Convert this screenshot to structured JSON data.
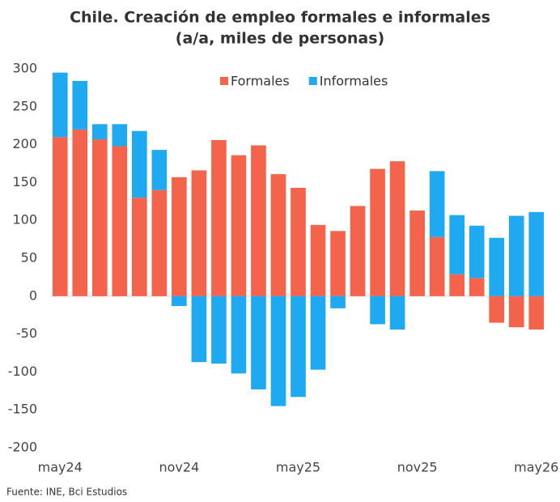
{
  "chart_data": {
    "type": "bar",
    "stacked": true,
    "title": "Chile. Creación de empleo formales e informales",
    "subtitle": "(a/a, miles de personas)",
    "source": "Fuente: INE, Bci Estudios",
    "categories": [
      "may24",
      null,
      null,
      null,
      null,
      null,
      "nov24",
      null,
      null,
      null,
      null,
      null,
      "may25",
      null,
      null,
      null,
      null,
      null,
      "nov25",
      null,
      null,
      null,
      null,
      null,
      "may26"
    ],
    "series": [
      {
        "name": "Formales",
        "color": "#f4634b",
        "values": [
          210,
          220,
          207,
          198,
          130,
          140,
          157,
          166,
          206,
          186,
          199,
          161,
          143,
          94,
          86,
          119,
          168,
          178,
          113,
          78,
          29,
          24,
          -35,
          -41,
          -44
        ]
      },
      {
        "name": "Informales",
        "color": "#1ea9f1",
        "values": [
          85,
          64,
          20,
          29,
          88,
          53,
          -13,
          -87,
          -89,
          -102,
          -123,
          -145,
          -133,
          -97,
          -16,
          0,
          -37,
          -44,
          0,
          87,
          78,
          69,
          77,
          106,
          111
        ]
      }
    ],
    "ylim": [
      -200,
      300
    ],
    "yticks": [
      -200,
      -150,
      -100,
      -50,
      0,
      50,
      100,
      150,
      200,
      250,
      300
    ],
    "legend": "top"
  }
}
